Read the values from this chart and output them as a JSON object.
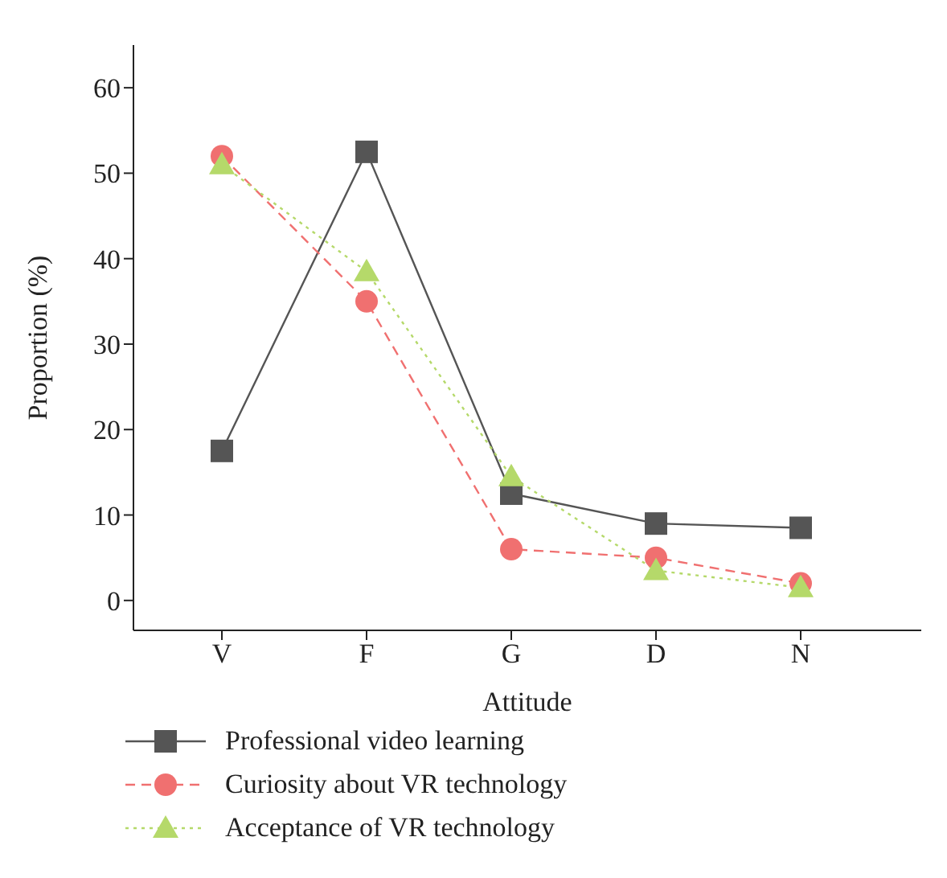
{
  "chart_data": {
    "type": "line",
    "xlabel": "Attitude",
    "ylabel": "Proportion (%)",
    "categories": [
      "V",
      "F",
      "G",
      "D",
      "N"
    ],
    "ylim": [
      -3.5,
      65
    ],
    "yticks": [
      0,
      10,
      20,
      30,
      40,
      50,
      60
    ],
    "grid": false,
    "legend": "bottom",
    "series": [
      {
        "name": "Professional video learning",
        "color": "#555555",
        "marker": "square",
        "line_style": "solid",
        "values": [
          17.5,
          52.5,
          12.5,
          9,
          8.5
        ]
      },
      {
        "name": "Curiosity about VR technology",
        "color": "#f07070",
        "marker": "circle",
        "line_style": "dashed",
        "values": [
          52,
          35,
          6,
          5,
          2
        ]
      },
      {
        "name": "Acceptance of VR technology",
        "color": "#b5d96a",
        "marker": "triangle",
        "line_style": "dotted",
        "values": [
          51,
          38.5,
          14.5,
          3.5,
          1.5
        ]
      }
    ]
  }
}
